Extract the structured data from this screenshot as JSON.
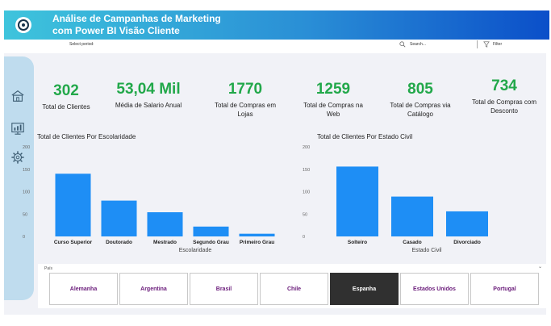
{
  "header": {
    "title_line1": "Análise de Campanhas de Marketing",
    "title_line2": "com Power BI Visão Cliente"
  },
  "toolbar": {
    "period_label": "Select period:",
    "search_placeholder": "Search...",
    "filter_label": "Filter"
  },
  "colors": {
    "kpi_value": "#22a84a",
    "bar": "#1e8ef5",
    "selected_slicer": "#303030",
    "slicer_text": "#6a1b7a"
  },
  "icons": [
    "home-icon",
    "dashboard-icon",
    "gear-icon"
  ],
  "kpis": [
    {
      "value": "302",
      "label": "Total de Clientes"
    },
    {
      "value": "53,04 Mil",
      "label": "Média de Salario Anual"
    },
    {
      "value": "1770",
      "label": "Total de Compras em Lojas"
    },
    {
      "value": "1259",
      "label": "Total de Compras na Web"
    },
    {
      "value": "805",
      "label": "Total de Compras via Catálogo"
    },
    {
      "value": "734",
      "label": "Total de Compras com Desconto"
    }
  ],
  "chart_data": [
    {
      "type": "bar",
      "title": "Total de Clientes Por Escolaridade",
      "xlabel": "Escolaridade",
      "ylabel": "",
      "categories": [
        "Curso Superior",
        "Doutorado",
        "Mestrado",
        "Segundo Grau",
        "Primeiro Grau"
      ],
      "values": [
        140,
        80,
        54,
        22,
        6
      ],
      "yticks": [
        0,
        50,
        100,
        150,
        200
      ],
      "ylim": [
        0,
        200
      ],
      "grid": false
    },
    {
      "type": "bar",
      "title": "Total de Clientes Por Estado Civil",
      "xlabel": "Estado Civil",
      "ylabel": "",
      "categories": [
        "Solteiro",
        "Casado",
        "Divorciado"
      ],
      "values": [
        156,
        89,
        56
      ],
      "yticks": [
        0,
        50,
        100,
        150,
        200
      ],
      "ylim": [
        0,
        200
      ],
      "grid": false
    }
  ],
  "slicer": {
    "title": "País",
    "options": [
      "Alemanha",
      "Argentina",
      "Brasil",
      "Chile",
      "Espanha",
      "Estados Unidos",
      "Portugal"
    ],
    "selected": "Espanha"
  }
}
